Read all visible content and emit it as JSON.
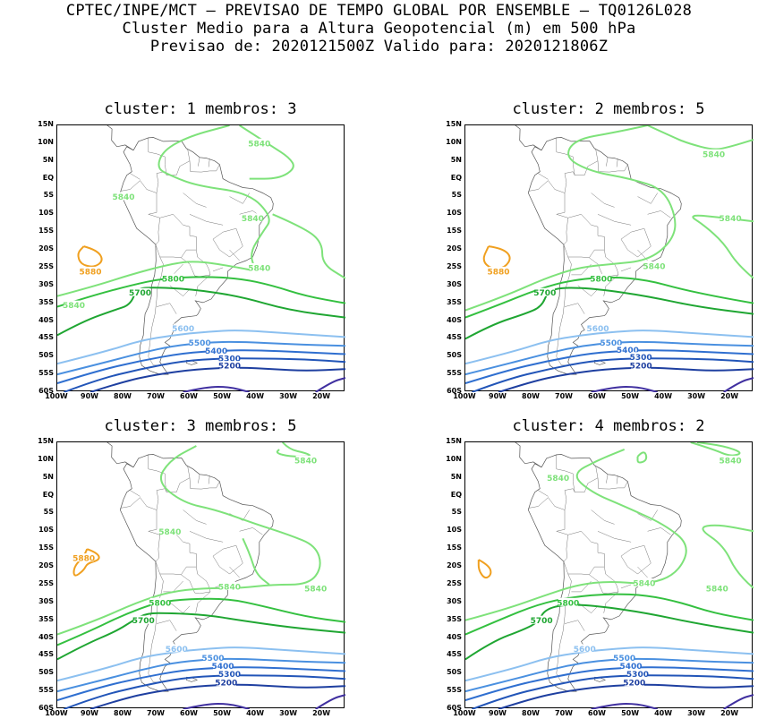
{
  "header": {
    "line1": "CPTEC/INPE/MCT – PREVISAO DE TEMPO GLOBAL POR ENSEMBLE – TQ0126L028",
    "line2": "Cluster Medio para a Altura Geopotencial (m) em 500 hPa",
    "line3": "Previsao de: 2020121500Z   Valido para: 2020121806Z"
  },
  "axes": {
    "lat_labels": [
      "15N",
      "10N",
      "5N",
      "EQ",
      "5S",
      "10S",
      "15S",
      "20S",
      "25S",
      "30S",
      "35S",
      "40S",
      "45S",
      "50S",
      "55S",
      "60S"
    ],
    "lon_labels": [
      "100W",
      "90W",
      "80W",
      "70W",
      "60W",
      "50W",
      "40W",
      "30W",
      "20W"
    ],
    "lat_range": [
      15,
      -60
    ],
    "lon_range": [
      -100,
      -13
    ]
  },
  "colors": {
    "c5200": "#1e3fa0",
    "c5300": "#2255b8",
    "c5400": "#2f6fd0",
    "c5500": "#4a90e0",
    "c5600": "#8cc0f0",
    "c5700": "#1fa632",
    "c5800": "#34c040",
    "c5840": "#7ee27a",
    "c5880": "#f0a020",
    "c5100": "#4030a0"
  },
  "panels": [
    {
      "title": "cluster: 1   membros: 3",
      "labels": [
        "5840",
        "5840",
        "5840",
        "5840",
        "5880",
        "5800",
        "5840",
        "5700",
        "5800",
        "5600",
        "5500",
        "5400",
        "5300",
        "5200"
      ]
    },
    {
      "title": "cluster: 2   membros: 5",
      "labels": [
        "5840",
        "5840",
        "5880",
        "5840",
        "5800",
        "5700",
        "5600",
        "5500",
        "5400",
        "5300",
        "5200"
      ]
    },
    {
      "title": "cluster: 3   membros: 5",
      "labels": [
        "5840",
        "5840",
        "5880",
        "5840",
        "5840",
        "5800",
        "5700",
        "5600",
        "5500",
        "5400",
        "5300",
        "5200"
      ]
    },
    {
      "title": "cluster: 4   membros: 2",
      "labels": [
        "5840",
        "5840",
        "5840",
        "5840",
        "5800",
        "5700",
        "5600",
        "5500",
        "5400",
        "5300",
        "5200"
      ]
    }
  ]
}
